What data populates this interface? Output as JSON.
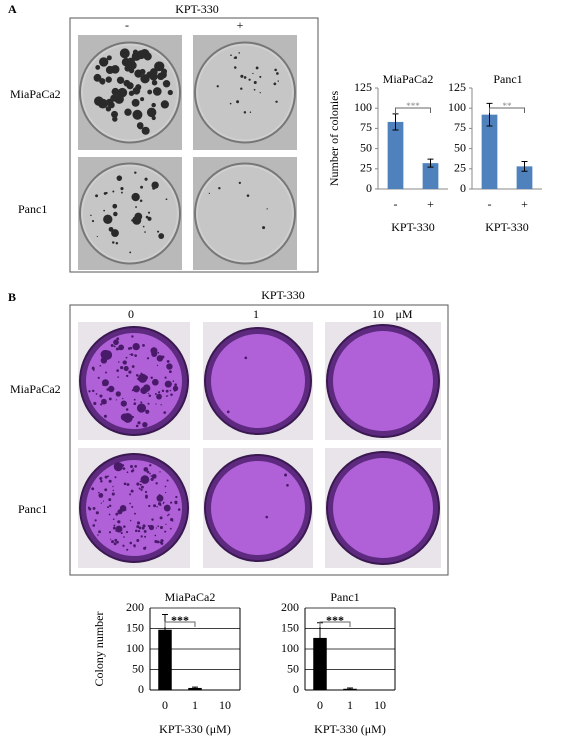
{
  "panel_a": {
    "label": "A",
    "treatment": "KPT-330",
    "columns": [
      "-",
      "+"
    ],
    "rows": [
      "MiaPaCa2",
      "Panc1"
    ]
  },
  "panel_b": {
    "label": "B",
    "treatment": "KPT-330",
    "columns": [
      "0",
      "1",
      "10"
    ],
    "unit": "μM",
    "rows": [
      "MiaPaCa2",
      "Panc1"
    ]
  },
  "chart_data": [
    {
      "type": "bar",
      "title": "MiaPaCa2",
      "y_label": "Number of colonies",
      "x_label": "KPT-330",
      "categories": [
        "-",
        "+"
      ],
      "values": [
        83,
        32
      ],
      "errors": [
        10,
        5
      ],
      "color": "#4f81bd",
      "ylim": [
        0,
        125
      ],
      "yticks": [
        0,
        25,
        50,
        75,
        100,
        125
      ],
      "grid": false,
      "significance": "***"
    },
    {
      "type": "bar",
      "title": "Panc1",
      "x_label": "KPT-330",
      "categories": [
        "-",
        "+"
      ],
      "values": [
        92,
        28
      ],
      "errors": [
        14,
        6
      ],
      "color": "#4f81bd",
      "ylim": [
        0,
        125
      ],
      "yticks": [
        0,
        25,
        50,
        75,
        100,
        125
      ],
      "grid": false,
      "significance": "**"
    },
    {
      "type": "bar",
      "title": "MiaPaCa2",
      "y_label": "Colony number",
      "x_label": "KPT-330 (μM)",
      "categories": [
        "0",
        "1",
        "10"
      ],
      "values": [
        147,
        5,
        0
      ],
      "errors": [
        37,
        2,
        0
      ],
      "color": "#000000",
      "ylim": [
        0,
        200
      ],
      "yticks": [
        0,
        50,
        100,
        150,
        200
      ],
      "grid": true,
      "significance": "***"
    },
    {
      "type": "bar",
      "title": "Panc1",
      "x_label": "KPT-330 (μM)",
      "categories": [
        "0",
        "1",
        "10"
      ],
      "values": [
        127,
        3,
        0
      ],
      "errors": [
        37,
        2,
        0
      ],
      "color": "#000000",
      "ylim": [
        0,
        200
      ],
      "yticks": [
        0,
        50,
        100,
        150,
        200
      ],
      "grid": true,
      "significance": "***"
    }
  ]
}
